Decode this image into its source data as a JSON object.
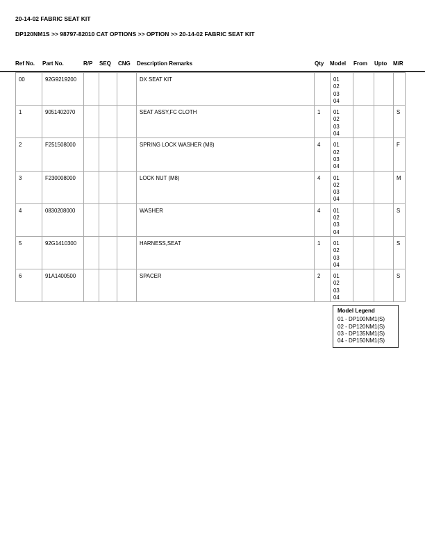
{
  "title": "20-14-02 FABRIC SEAT KIT",
  "breadcrumb": "DP120NM1S >> 98797-82010 CAT OPTIONS >> OPTION >> 20-14-02 FABRIC SEAT KIT",
  "columns": {
    "ref": "Ref No.",
    "part": "Part No.",
    "rp": "R/P",
    "seq": "SEQ",
    "cng": "CNG",
    "desc": "Description Remarks",
    "qty": "Qty",
    "model": "Model",
    "from": "From",
    "upto": "Upto",
    "mr": "M/R"
  },
  "rows": [
    {
      "ref": "00",
      "part": "92G9219200",
      "desc": "DX SEAT KIT",
      "qty": "",
      "models": [
        "01",
        "02",
        "03",
        "04"
      ],
      "mr": ""
    },
    {
      "ref": "1",
      "part": "9051402070",
      "desc": "SEAT ASSY,FC CLOTH",
      "qty": "1",
      "models": [
        "01",
        "02",
        "03",
        "04"
      ],
      "mr": "S"
    },
    {
      "ref": "2",
      "part": "F251508000",
      "desc": "SPRING LOCK WASHER (M8)",
      "qty": "4",
      "models": [
        "01",
        "02",
        "03",
        "04"
      ],
      "mr": "F"
    },
    {
      "ref": "3",
      "part": "F230008000",
      "desc": "LOCK NUT (M8)",
      "qty": "4",
      "models": [
        "01",
        "02",
        "03",
        "04"
      ],
      "mr": "M"
    },
    {
      "ref": "4",
      "part": "0830208000",
      "desc": "WASHER",
      "qty": "4",
      "models": [
        "01",
        "02",
        "03",
        "04"
      ],
      "mr": "S"
    },
    {
      "ref": "5",
      "part": "92G1410300",
      "desc": "HARNESS,SEAT",
      "qty": "1",
      "models": [
        "01",
        "02",
        "03",
        "04"
      ],
      "mr": "S"
    },
    {
      "ref": "6",
      "part": "91A1400500",
      "desc": "SPACER",
      "qty": "2",
      "models": [
        "01",
        "02",
        "03",
        "04"
      ],
      "mr": "S"
    }
  ],
  "legend": {
    "title": "Model Legend",
    "items": [
      "01 - DP100NM1(S)",
      "02 - DP120NM1(S)",
      "03 - DP135NM1(S)",
      "04 - DP150NM1(S)"
    ]
  }
}
